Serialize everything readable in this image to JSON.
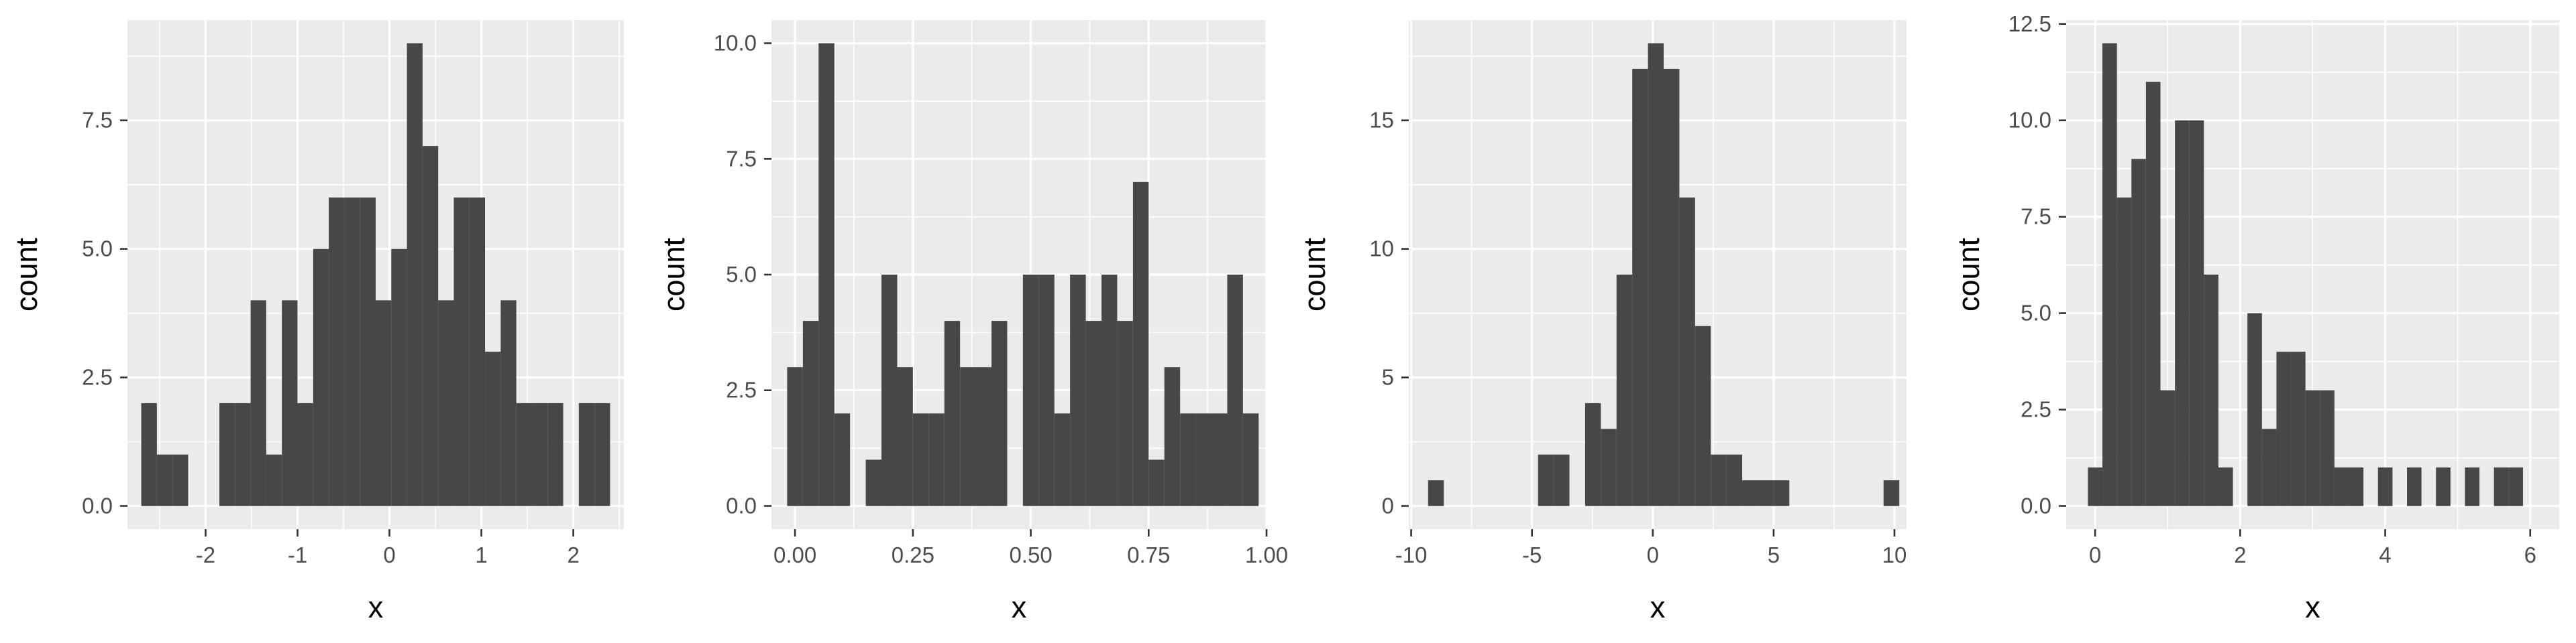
{
  "chart_data": [
    {
      "type": "bar",
      "xlabel": "x",
      "ylabel": "count",
      "xlim": [
        -2.85,
        2.55
      ],
      "ylim": [
        -0.45,
        9.45
      ],
      "xticks": [
        -2,
        -1,
        0,
        1,
        2
      ],
      "xtick_labels": [
        "-2",
        "-1",
        "0",
        "1",
        "2"
      ],
      "yticks": [
        0,
        2.5,
        5,
        7.5
      ],
      "ytick_labels": [
        "0.0",
        "2.5",
        "5.0",
        "7.5"
      ],
      "bins": [
        {
          "x0": -2.7,
          "x1": -2.53,
          "count": 2
        },
        {
          "x0": -2.53,
          "x1": -2.36,
          "count": 1
        },
        {
          "x0": -2.36,
          "x1": -2.19,
          "count": 1
        },
        {
          "x0": -2.19,
          "x1": -2.02,
          "count": 0
        },
        {
          "x0": -2.02,
          "x1": -1.85,
          "count": 0
        },
        {
          "x0": -1.85,
          "x1": -1.68,
          "count": 2
        },
        {
          "x0": -1.68,
          "x1": -1.51,
          "count": 2
        },
        {
          "x0": -1.51,
          "x1": -1.34,
          "count": 4
        },
        {
          "x0": -1.34,
          "x1": -1.17,
          "count": 1
        },
        {
          "x0": -1.17,
          "x1": -1.0,
          "count": 4
        },
        {
          "x0": -1.0,
          "x1": -0.83,
          "count": 2
        },
        {
          "x0": -0.83,
          "x1": -0.66,
          "count": 5
        },
        {
          "x0": -0.66,
          "x1": -0.49,
          "count": 6
        },
        {
          "x0": -0.49,
          "x1": -0.32,
          "count": 6
        },
        {
          "x0": -0.32,
          "x1": -0.15,
          "count": 6
        },
        {
          "x0": -0.15,
          "x1": 0.02,
          "count": 4
        },
        {
          "x0": 0.02,
          "x1": 0.19,
          "count": 5
        },
        {
          "x0": 0.19,
          "x1": 0.36,
          "count": 9
        },
        {
          "x0": 0.36,
          "x1": 0.53,
          "count": 7
        },
        {
          "x0": 0.53,
          "x1": 0.7,
          "count": 4
        },
        {
          "x0": 0.7,
          "x1": 0.87,
          "count": 6
        },
        {
          "x0": 0.87,
          "x1": 1.04,
          "count": 6
        },
        {
          "x0": 1.04,
          "x1": 1.21,
          "count": 3
        },
        {
          "x0": 1.21,
          "x1": 1.38,
          "count": 4
        },
        {
          "x0": 1.38,
          "x1": 1.55,
          "count": 2
        },
        {
          "x0": 1.55,
          "x1": 1.72,
          "count": 2
        },
        {
          "x0": 1.72,
          "x1": 1.89,
          "count": 2
        },
        {
          "x0": 1.89,
          "x1": 2.06,
          "count": 0
        },
        {
          "x0": 2.06,
          "x1": 2.23,
          "count": 2
        },
        {
          "x0": 2.23,
          "x1": 2.4,
          "count": 2
        }
      ]
    },
    {
      "type": "bar",
      "xlabel": "x",
      "ylabel": "count",
      "xlim": [
        -0.05,
        1.0
      ],
      "ylim": [
        -0.5,
        10.5
      ],
      "xticks": [
        0,
        0.25,
        0.5,
        0.75,
        1.0
      ],
      "xtick_labels": [
        "0.00",
        "0.25",
        "0.50",
        "0.75",
        "1.00"
      ],
      "yticks": [
        0,
        2.5,
        5,
        7.5,
        10
      ],
      "ytick_labels": [
        "0.0",
        "2.5",
        "5.0",
        "7.5",
        "10.0"
      ],
      "bins": [
        {
          "x0": -0.0167,
          "x1": 0.0167,
          "count": 3
        },
        {
          "x0": 0.0167,
          "x1": 0.05,
          "count": 4
        },
        {
          "x0": 0.05,
          "x1": 0.0833,
          "count": 10
        },
        {
          "x0": 0.0833,
          "x1": 0.1167,
          "count": 2
        },
        {
          "x0": 0.1167,
          "x1": 0.15,
          "count": 0
        },
        {
          "x0": 0.15,
          "x1": 0.1833,
          "count": 1
        },
        {
          "x0": 0.1833,
          "x1": 0.2167,
          "count": 5
        },
        {
          "x0": 0.2167,
          "x1": 0.25,
          "count": 3
        },
        {
          "x0": 0.25,
          "x1": 0.2833,
          "count": 2
        },
        {
          "x0": 0.2833,
          "x1": 0.3167,
          "count": 2
        },
        {
          "x0": 0.3167,
          "x1": 0.35,
          "count": 4
        },
        {
          "x0": 0.35,
          "x1": 0.3833,
          "count": 3
        },
        {
          "x0": 0.3833,
          "x1": 0.4167,
          "count": 3
        },
        {
          "x0": 0.4167,
          "x1": 0.45,
          "count": 4
        },
        {
          "x0": 0.45,
          "x1": 0.4833,
          "count": 0
        },
        {
          "x0": 0.4833,
          "x1": 0.5167,
          "count": 5
        },
        {
          "x0": 0.5167,
          "x1": 0.55,
          "count": 5
        },
        {
          "x0": 0.55,
          "x1": 0.5833,
          "count": 2
        },
        {
          "x0": 0.5833,
          "x1": 0.6167,
          "count": 5
        },
        {
          "x0": 0.6167,
          "x1": 0.65,
          "count": 4
        },
        {
          "x0": 0.65,
          "x1": 0.6833,
          "count": 5
        },
        {
          "x0": 0.6833,
          "x1": 0.7167,
          "count": 4
        },
        {
          "x0": 0.7167,
          "x1": 0.75,
          "count": 7
        },
        {
          "x0": 0.75,
          "x1": 0.7833,
          "count": 1
        },
        {
          "x0": 0.7833,
          "x1": 0.8167,
          "count": 3
        },
        {
          "x0": 0.8167,
          "x1": 0.85,
          "count": 2
        },
        {
          "x0": 0.85,
          "x1": 0.8833,
          "count": 2
        },
        {
          "x0": 0.8833,
          "x1": 0.9167,
          "count": 2
        },
        {
          "x0": 0.9167,
          "x1": 0.95,
          "count": 5
        },
        {
          "x0": 0.95,
          "x1": 0.9833,
          "count": 2
        }
      ]
    },
    {
      "type": "bar",
      "xlabel": "x",
      "ylabel": "count",
      "xlim": [
        -10.1,
        10.5
      ],
      "ylim": [
        -0.9,
        18.9
      ],
      "xticks": [
        -10,
        -5,
        0,
        5,
        10
      ],
      "xtick_labels": [
        "-10",
        "-5",
        "0",
        "5",
        "10"
      ],
      "yticks": [
        0,
        5,
        10,
        15
      ],
      "ytick_labels": [
        "0",
        "5",
        "10",
        "15"
      ],
      "bins": [
        {
          "x0": -9.3,
          "x1": -8.65,
          "count": 1
        },
        {
          "x0": -8.65,
          "x1": -8.0,
          "count": 0
        },
        {
          "x0": -8.0,
          "x1": -7.35,
          "count": 0
        },
        {
          "x0": -7.35,
          "x1": -6.7,
          "count": 0
        },
        {
          "x0": -6.7,
          "x1": -6.05,
          "count": 0
        },
        {
          "x0": -6.05,
          "x1": -5.4,
          "count": 0
        },
        {
          "x0": -5.4,
          "x1": -4.75,
          "count": 0
        },
        {
          "x0": -4.75,
          "x1": -4.1,
          "count": 2
        },
        {
          "x0": -4.1,
          "x1": -3.45,
          "count": 2
        },
        {
          "x0": -3.45,
          "x1": -2.8,
          "count": 0
        },
        {
          "x0": -2.8,
          "x1": -2.15,
          "count": 4
        },
        {
          "x0": -2.15,
          "x1": -1.5,
          "count": 3
        },
        {
          "x0": -1.5,
          "x1": -0.85,
          "count": 9
        },
        {
          "x0": -0.85,
          "x1": -0.2,
          "count": 17
        },
        {
          "x0": -0.2,
          "x1": 0.45,
          "count": 18
        },
        {
          "x0": 0.45,
          "x1": 1.1,
          "count": 17
        },
        {
          "x0": 1.1,
          "x1": 1.75,
          "count": 12
        },
        {
          "x0": 1.75,
          "x1": 2.4,
          "count": 7
        },
        {
          "x0": 2.4,
          "x1": 3.05,
          "count": 2
        },
        {
          "x0": 3.05,
          "x1": 3.7,
          "count": 2
        },
        {
          "x0": 3.7,
          "x1": 4.35,
          "count": 1
        },
        {
          "x0": 4.35,
          "x1": 5.0,
          "count": 1
        },
        {
          "x0": 5.0,
          "x1": 5.65,
          "count": 1
        },
        {
          "x0": 5.65,
          "x1": 6.3,
          "count": 0
        },
        {
          "x0": 6.3,
          "x1": 6.95,
          "count": 0
        },
        {
          "x0": 6.95,
          "x1": 7.6,
          "count": 0
        },
        {
          "x0": 7.6,
          "x1": 8.25,
          "count": 0
        },
        {
          "x0": 8.25,
          "x1": 8.9,
          "count": 0
        },
        {
          "x0": 8.9,
          "x1": 9.55,
          "count": 0
        },
        {
          "x0": 9.55,
          "x1": 10.2,
          "count": 1
        }
      ]
    },
    {
      "type": "bar",
      "xlabel": "x",
      "ylabel": "count",
      "xlim": [
        -0.4,
        6.4
      ],
      "ylim": [
        -0.6,
        12.6
      ],
      "xticks": [
        0,
        2,
        4,
        6
      ],
      "xtick_labels": [
        "0",
        "2",
        "4",
        "6"
      ],
      "yticks": [
        0,
        2.5,
        5,
        7.5,
        10,
        12.5
      ],
      "ytick_labels": [
        "0.0",
        "2.5",
        "5.0",
        "7.5",
        "10.0",
        "12.5"
      ],
      "bins": [
        {
          "x0": -0.1,
          "x1": 0.1,
          "count": 1
        },
        {
          "x0": 0.1,
          "x1": 0.3,
          "count": 12
        },
        {
          "x0": 0.3,
          "x1": 0.5,
          "count": 8
        },
        {
          "x0": 0.5,
          "x1": 0.7,
          "count": 9
        },
        {
          "x0": 0.7,
          "x1": 0.9,
          "count": 11
        },
        {
          "x0": 0.9,
          "x1": 1.1,
          "count": 3
        },
        {
          "x0": 1.1,
          "x1": 1.3,
          "count": 10
        },
        {
          "x0": 1.3,
          "x1": 1.5,
          "count": 10
        },
        {
          "x0": 1.5,
          "x1": 1.7,
          "count": 6
        },
        {
          "x0": 1.7,
          "x1": 1.9,
          "count": 1
        },
        {
          "x0": 1.9,
          "x1": 2.1,
          "count": 0
        },
        {
          "x0": 2.1,
          "x1": 2.3,
          "count": 5
        },
        {
          "x0": 2.3,
          "x1": 2.5,
          "count": 2
        },
        {
          "x0": 2.5,
          "x1": 2.7,
          "count": 4
        },
        {
          "x0": 2.7,
          "x1": 2.9,
          "count": 4
        },
        {
          "x0": 2.9,
          "x1": 3.1,
          "count": 3
        },
        {
          "x0": 3.1,
          "x1": 3.3,
          "count": 3
        },
        {
          "x0": 3.3,
          "x1": 3.5,
          "count": 1
        },
        {
          "x0": 3.5,
          "x1": 3.7,
          "count": 1
        },
        {
          "x0": 3.7,
          "x1": 3.9,
          "count": 0
        },
        {
          "x0": 3.9,
          "x1": 4.1,
          "count": 1
        },
        {
          "x0": 4.1,
          "x1": 4.3,
          "count": 0
        },
        {
          "x0": 4.3,
          "x1": 4.5,
          "count": 1
        },
        {
          "x0": 4.5,
          "x1": 4.7,
          "count": 0
        },
        {
          "x0": 4.7,
          "x1": 4.9,
          "count": 1
        },
        {
          "x0": 4.9,
          "x1": 5.1,
          "count": 0
        },
        {
          "x0": 5.1,
          "x1": 5.3,
          "count": 1
        },
        {
          "x0": 5.3,
          "x1": 5.5,
          "count": 0
        },
        {
          "x0": 5.5,
          "x1": 5.7,
          "count": 1
        },
        {
          "x0": 5.7,
          "x1": 5.9,
          "count": 1
        }
      ]
    }
  ]
}
